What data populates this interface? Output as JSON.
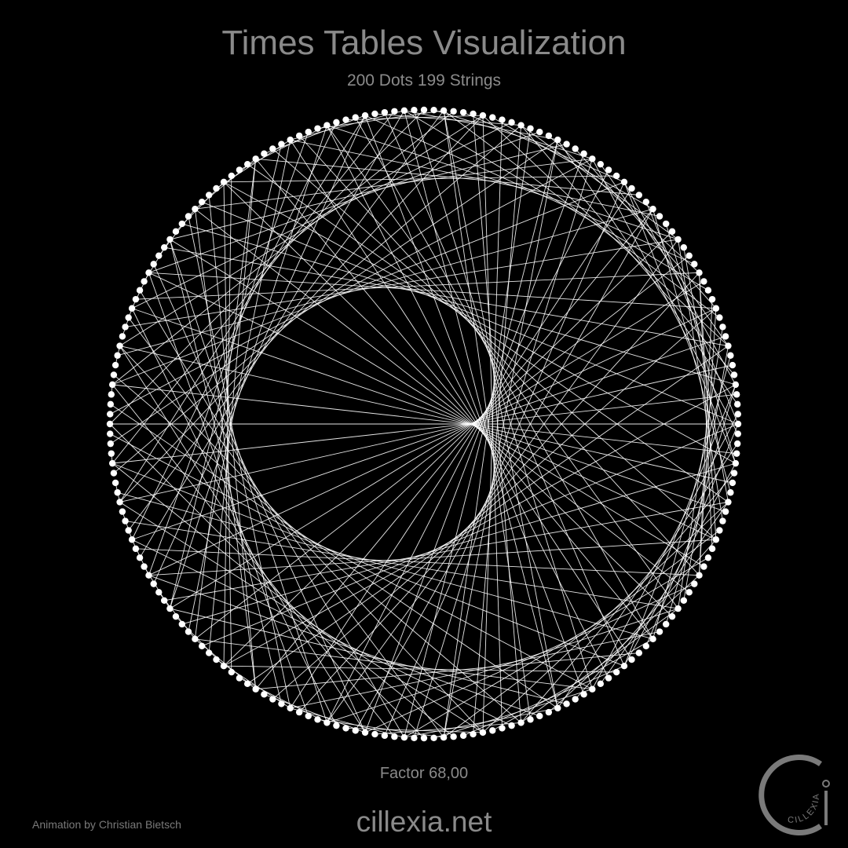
{
  "header": {
    "title": "Times Tables Visualization",
    "subtitle": "200 Dots 199 Strings"
  },
  "visualization": {
    "dots": 200,
    "strings": 199,
    "factor": 68,
    "dot_color": "#ffffff",
    "line_color": "#ffffff",
    "background": "#000000"
  },
  "footer": {
    "factor_label": "Factor 68,00",
    "site": "cillexia.net",
    "credit": "Animation by Christian Bietsch",
    "logo_text": "CILLEXIA"
  },
  "colors": {
    "text": "#8a8a8a",
    "logo": "#7a7a7a"
  }
}
